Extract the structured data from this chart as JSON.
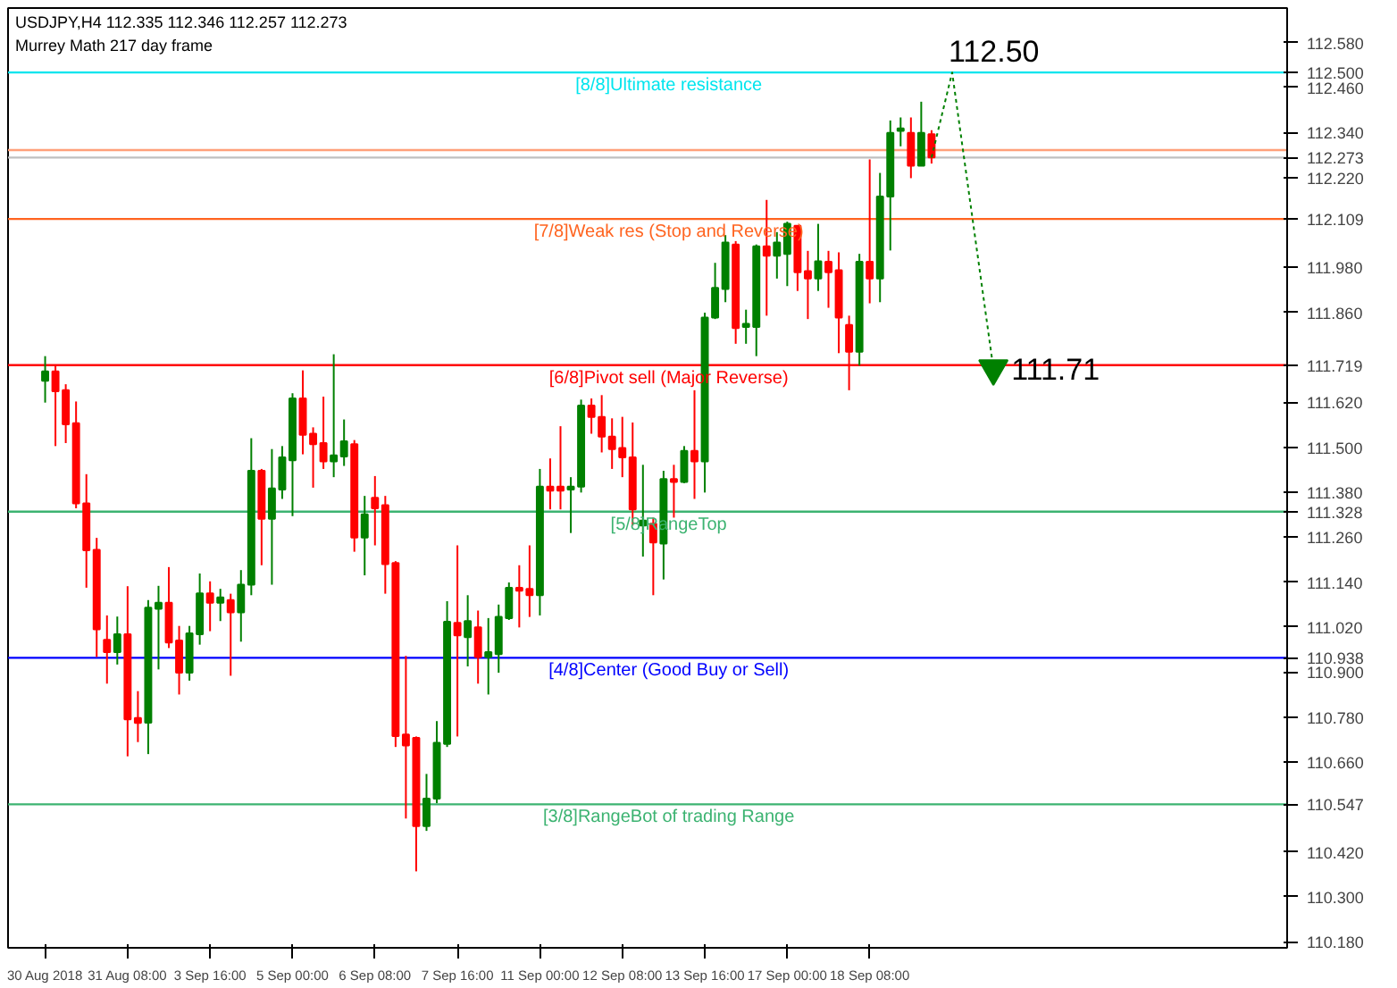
{
  "chart_data": {
    "type": "candlestick",
    "title": "USDJPY,H4  112.335 112.346 112.257 112.273",
    "subtitle": "Murrey Math 217 day frame",
    "categories": [
      "30 Aug 2018",
      null,
      null,
      null,
      null,
      null,
      null,
      null,
      "31 Aug 08:00",
      null,
      null,
      null,
      null,
      null,
      null,
      null,
      "3 Sep 16:00",
      null,
      null,
      null,
      null,
      null,
      null,
      null,
      "5 Sep 00:00",
      null,
      null,
      null,
      null,
      null,
      null,
      null,
      "6 Sep 08:00",
      null,
      null,
      null,
      null,
      null,
      null,
      null,
      "7 Sep 16:00",
      null,
      null,
      null,
      null,
      null,
      null,
      null,
      "11 Sep 00:00",
      null,
      null,
      null,
      null,
      null,
      null,
      null,
      "12 Sep 08:00",
      null,
      null,
      null,
      null,
      null,
      null,
      null,
      "13 Sep 16:00",
      null,
      null,
      null,
      null,
      null,
      null,
      null,
      "17 Sep 00:00",
      null,
      null,
      null,
      null,
      null,
      null,
      null,
      "18 Sep 08:00",
      null,
      null,
      null,
      null,
      null,
      null,
      null,
      null,
      null,
      null,
      null,
      null,
      null,
      null,
      null,
      null,
      null,
      null,
      null,
      null,
      null,
      null,
      null,
      null,
      null,
      null,
      null,
      null,
      null,
      null,
      null,
      null,
      null,
      null,
      null,
      null,
      null,
      null,
      null,
      null
    ],
    "ohlc": [
      [
        111.677,
        111.743,
        111.619,
        111.702
      ],
      [
        111.702,
        111.718,
        111.503,
        111.649
      ],
      [
        111.652,
        111.668,
        111.511,
        111.561
      ],
      [
        111.564,
        111.622,
        111.337,
        111.35
      ],
      [
        111.35,
        111.428,
        111.125,
        111.225
      ],
      [
        111.226,
        111.258,
        110.94,
        111.014
      ],
      [
        110.986,
        111.051,
        110.869,
        110.953
      ],
      [
        110.953,
        111.048,
        110.92,
        111.001
      ],
      [
        111.001,
        111.129,
        110.675,
        110.774
      ],
      [
        110.777,
        110.849,
        110.713,
        110.764
      ],
      [
        110.765,
        111.092,
        110.681,
        111.072
      ],
      [
        111.069,
        111.13,
        110.907,
        111.085
      ],
      [
        111.085,
        111.18,
        110.964,
        110.979
      ],
      [
        110.984,
        111.023,
        110.84,
        110.898
      ],
      [
        110.898,
        111.023,
        110.877,
        111.003
      ],
      [
        111.001,
        111.163,
        110.973,
        111.11
      ],
      [
        111.11,
        111.142,
        111.009,
        111.085
      ],
      [
        111.085,
        111.122,
        111.036,
        111.099
      ],
      [
        111.092,
        111.109,
        110.89,
        111.059
      ],
      [
        111.059,
        111.172,
        110.981,
        111.133
      ],
      [
        111.133,
        111.524,
        111.105,
        111.437
      ],
      [
        111.437,
        111.442,
        111.185,
        111.309
      ],
      [
        111.309,
        111.495,
        111.133,
        111.39
      ],
      [
        111.387,
        111.503,
        111.362,
        111.473
      ],
      [
        111.465,
        111.644,
        111.316,
        111.63
      ],
      [
        111.63,
        111.705,
        111.481,
        111.533
      ],
      [
        111.536,
        111.553,
        111.392,
        111.508
      ],
      [
        111.511,
        111.635,
        111.442,
        111.462
      ],
      [
        111.462,
        111.748,
        111.42,
        111.478
      ],
      [
        111.475,
        111.574,
        111.45,
        111.516
      ],
      [
        111.508,
        111.519,
        111.221,
        111.259
      ],
      [
        111.259,
        111.37,
        111.158,
        111.321
      ],
      [
        111.365,
        111.423,
        111.238,
        111.337
      ],
      [
        111.345,
        111.37,
        111.109,
        111.188
      ],
      [
        111.191,
        111.196,
        110.7,
        110.729
      ],
      [
        110.733,
        110.943,
        110.509,
        110.704
      ],
      [
        110.724,
        110.728,
        110.368,
        110.489
      ],
      [
        110.489,
        110.628,
        110.476,
        110.562
      ],
      [
        110.562,
        110.769,
        110.55,
        110.711
      ],
      [
        110.708,
        111.089,
        110.7,
        111.034
      ],
      [
        111.031,
        111.238,
        110.728,
        110.998
      ],
      [
        110.993,
        111.105,
        110.915,
        111.036
      ],
      [
        111.019,
        111.064,
        110.869,
        110.94
      ],
      [
        110.94,
        111.044,
        110.84,
        110.953
      ],
      [
        110.948,
        111.08,
        110.898,
        111.047
      ],
      [
        111.044,
        111.139,
        111.039,
        111.125
      ],
      [
        111.125,
        111.185,
        111.019,
        111.117
      ],
      [
        111.122,
        111.238,
        111.047,
        111.105
      ],
      [
        111.105,
        111.442,
        111.051,
        111.395
      ],
      [
        111.395,
        111.47,
        111.334,
        111.384
      ],
      [
        111.395,
        111.556,
        111.334,
        111.384
      ],
      [
        111.387,
        111.42,
        111.271,
        111.395
      ],
      [
        111.395,
        111.627,
        111.379,
        111.611
      ],
      [
        111.611,
        111.63,
        111.536,
        111.581
      ],
      [
        111.581,
        111.639,
        111.486,
        111.528
      ],
      [
        111.528,
        111.577,
        111.442,
        111.495
      ],
      [
        111.498,
        111.581,
        111.42,
        111.473
      ],
      [
        111.473,
        111.566,
        111.291,
        111.334
      ],
      [
        111.291,
        111.453,
        111.208,
        111.304
      ],
      [
        111.296,
        111.312,
        111.105,
        111.246
      ],
      [
        111.243,
        111.437,
        111.147,
        111.415
      ],
      [
        111.415,
        111.453,
        111.312,
        111.407
      ],
      [
        111.407,
        111.503,
        111.404,
        111.49
      ],
      [
        111.49,
        111.652,
        111.362,
        111.462
      ],
      [
        111.462,
        111.859,
        111.379,
        111.846
      ],
      [
        111.846,
        111.992,
        111.842,
        111.925
      ],
      [
        111.922,
        112.066,
        111.887,
        112.046
      ],
      [
        112.041,
        112.05,
        111.776,
        111.818
      ],
      [
        111.821,
        111.867,
        111.776,
        111.829
      ],
      [
        111.821,
        112.041,
        111.743,
        112.036
      ],
      [
        112.036,
        112.16,
        111.851,
        112.011
      ],
      [
        112.011,
        112.074,
        111.95,
        112.046
      ],
      [
        112.016,
        112.102,
        111.93,
        112.096
      ],
      [
        112.091,
        112.091,
        111.917,
        111.967
      ],
      [
        111.97,
        112.024,
        111.842,
        111.95
      ],
      [
        111.95,
        112.096,
        111.917,
        111.996
      ],
      [
        111.995,
        112.024,
        111.872,
        111.967
      ],
      [
        111.972,
        112.02,
        111.751,
        111.846
      ],
      [
        111.826,
        111.851,
        111.652,
        111.755
      ],
      [
        111.755,
        112.016,
        111.718,
        111.995
      ],
      [
        111.995,
        112.268,
        111.884,
        111.95
      ],
      [
        111.95,
        112.232,
        111.887,
        112.169
      ],
      [
        112.169,
        112.372,
        112.025,
        112.339
      ],
      [
        112.344,
        112.38,
        112.303,
        112.351
      ],
      [
        112.339,
        112.38,
        112.218,
        112.251
      ],
      [
        112.251,
        112.422,
        112.251,
        112.339
      ],
      [
        112.335,
        112.346,
        112.257,
        112.273
      ],
      null,
      null,
      null,
      null,
      null,
      null,
      null,
      null,
      null,
      null,
      null,
      null,
      null,
      null,
      null,
      null,
      null,
      null,
      null,
      null,
      null,
      null,
      null,
      null,
      null,
      null,
      null,
      null,
      null,
      null,
      null,
      null,
      null,
      null
    ],
    "series": [
      {
        "type": "line",
        "color": "#008000",
        "line_style": "dotted",
        "values": [
          null,
          null,
          null,
          null,
          null,
          null,
          null,
          null,
          null,
          null,
          null,
          null,
          null,
          null,
          null,
          null,
          null,
          null,
          null,
          null,
          null,
          null,
          null,
          null,
          null,
          null,
          null,
          null,
          null,
          null,
          null,
          null,
          null,
          null,
          null,
          null,
          null,
          null,
          null,
          null,
          null,
          null,
          null,
          null,
          null,
          null,
          null,
          null,
          null,
          null,
          null,
          null,
          null,
          null,
          null,
          null,
          null,
          null,
          null,
          null,
          null,
          null,
          null,
          null,
          null,
          null,
          null,
          null,
          null,
          null,
          null,
          null,
          null,
          null,
          null,
          null,
          null,
          null,
          null,
          null,
          null,
          null,
          null,
          null,
          null,
          null,
          112.273,
          null,
          112.5,
          null,
          null,
          null,
          111.71,
          null,
          null,
          null,
          null,
          null,
          null,
          null,
          null,
          null,
          null,
          null,
          null,
          null,
          null,
          null,
          null,
          null,
          null,
          null,
          null,
          null,
          null,
          null,
          null,
          null,
          null,
          null,
          null
        ]
      }
    ],
    "annotations": [
      {
        "text": "112.50",
        "y": 112.5
      },
      {
        "text": "111.71",
        "y": 111.71
      }
    ],
    "colors": [
      "#008000",
      "#ff0000",
      "#ff0000",
      "#ff0000",
      "#ff0000",
      "#ff0000",
      "#ff0000",
      "#008000",
      "#ff0000",
      "#ff0000",
      "#008000",
      "#008000",
      "#ff0000",
      "#ff0000",
      "#008000",
      "#008000",
      "#ff0000",
      "#008000",
      "#ff0000",
      "#008000",
      "#008000",
      "#ff0000",
      "#008000",
      "#008000",
      "#008000",
      "#ff0000",
      "#ff0000",
      "#ff0000",
      "#008000",
      "#008000",
      "#ff0000",
      "#008000",
      "#ff0000",
      "#ff0000",
      "#ff0000",
      "#ff0000",
      "#ff0000",
      "#008000",
      "#008000",
      "#008000",
      "#ff0000",
      "#008000",
      "#ff0000",
      "#008000",
      "#008000",
      "#008000",
      "#ff0000",
      "#ff0000",
      "#008000",
      "#ff0000",
      "#ff0000",
      "#008000",
      "#008000",
      "#ff0000",
      "#ff0000",
      "#ff0000",
      "#ff0000",
      "#ff0000",
      "#008000",
      "#ff0000",
      "#008000",
      "#ff0000",
      "#008000",
      "#ff0000",
      "#008000",
      "#008000",
      "#008000",
      "#ff0000",
      "#008000",
      "#008000",
      "#ff0000",
      "#008000",
      "#008000",
      "#ff0000",
      "#ff0000",
      "#008000",
      "#ff0000",
      "#ff0000",
      "#ff0000",
      "#008000",
      "#ff0000",
      "#008000",
      "#008000",
      "#008000",
      "#ff0000",
      "#008000",
      "#ff0000",
      null,
      null,
      null,
      null,
      null,
      null,
      null,
      null,
      null,
      null,
      null,
      null,
      null,
      null,
      null,
      null,
      null,
      null,
      null,
      null,
      null,
      null,
      null,
      null,
      null,
      null,
      null,
      null,
      null,
      null,
      null,
      null,
      null,
      null
    ],
    "ylim": [
      110.164,
      112.672
    ],
    "yticks": [
      {
        "value": 112.5,
        "label": "112.500"
      },
      {
        "value": 112.273,
        "label": "112.273"
      },
      {
        "value": 112.109,
        "label": "112.109"
      },
      {
        "value": 111.719,
        "label": "111.719"
      },
      {
        "value": 111.328,
        "label": "111.328"
      },
      {
        "value": 110.938,
        "label": "110.938"
      },
      {
        "value": 110.547,
        "label": "110.547"
      },
      {
        "value": 112.58,
        "label": "112.580"
      },
      {
        "value": 112.46,
        "label": "112.460"
      },
      {
        "value": 112.34,
        "label": "112.340"
      },
      {
        "value": 112.22,
        "label": "112.220"
      },
      {
        "value": 111.98,
        "label": "111.980"
      },
      {
        "value": 111.86,
        "label": "111.860"
      },
      {
        "value": 111.62,
        "label": "111.620"
      },
      {
        "value": 111.5,
        "label": "111.500"
      },
      {
        "value": 111.38,
        "label": "111.380"
      },
      {
        "value": 111.26,
        "label": "111.260"
      },
      {
        "value": 111.14,
        "label": "111.140"
      },
      {
        "value": 111.02,
        "label": "111.020"
      },
      {
        "value": 110.9,
        "label": "110.900"
      },
      {
        "value": 110.78,
        "label": "110.780"
      },
      {
        "value": 110.66,
        "label": "110.660"
      },
      {
        "value": 110.42,
        "label": "110.420"
      },
      {
        "value": 110.3,
        "label": "110.300"
      },
      {
        "value": 110.18,
        "label": "110.180"
      }
    ],
    "ref_lines": [
      {
        "axis": "y",
        "value": 112.5,
        "label": "[8/8]Ultimate resistance",
        "color": "#00e5ee"
      },
      {
        "axis": "y",
        "value": 112.293,
        "label": null,
        "color": "#ffa07a"
      },
      {
        "axis": "y",
        "value": 112.273,
        "label": null,
        "color": "#c0c0c0"
      },
      {
        "axis": "y",
        "value": 112.109,
        "label": "[7/8]Weak res (Stop and Reverse)",
        "color": "#ff6420"
      },
      {
        "axis": "y",
        "value": 111.719,
        "label": "[6/8]Pivot sell (Major Reverse)",
        "color": "#ff0000"
      },
      {
        "axis": "y",
        "value": 111.328,
        "label": "[5/8]RangeTop",
        "color": "#3cb371"
      },
      {
        "axis": "y",
        "value": 110.938,
        "label": "[4/8]Center (Good Buy or Sell)",
        "color": "#0000ff"
      },
      {
        "axis": "y",
        "value": 110.547,
        "label": "[3/8]RangeBot of trading Range",
        "color": "#3cb371"
      }
    ],
    "grid": false
  }
}
